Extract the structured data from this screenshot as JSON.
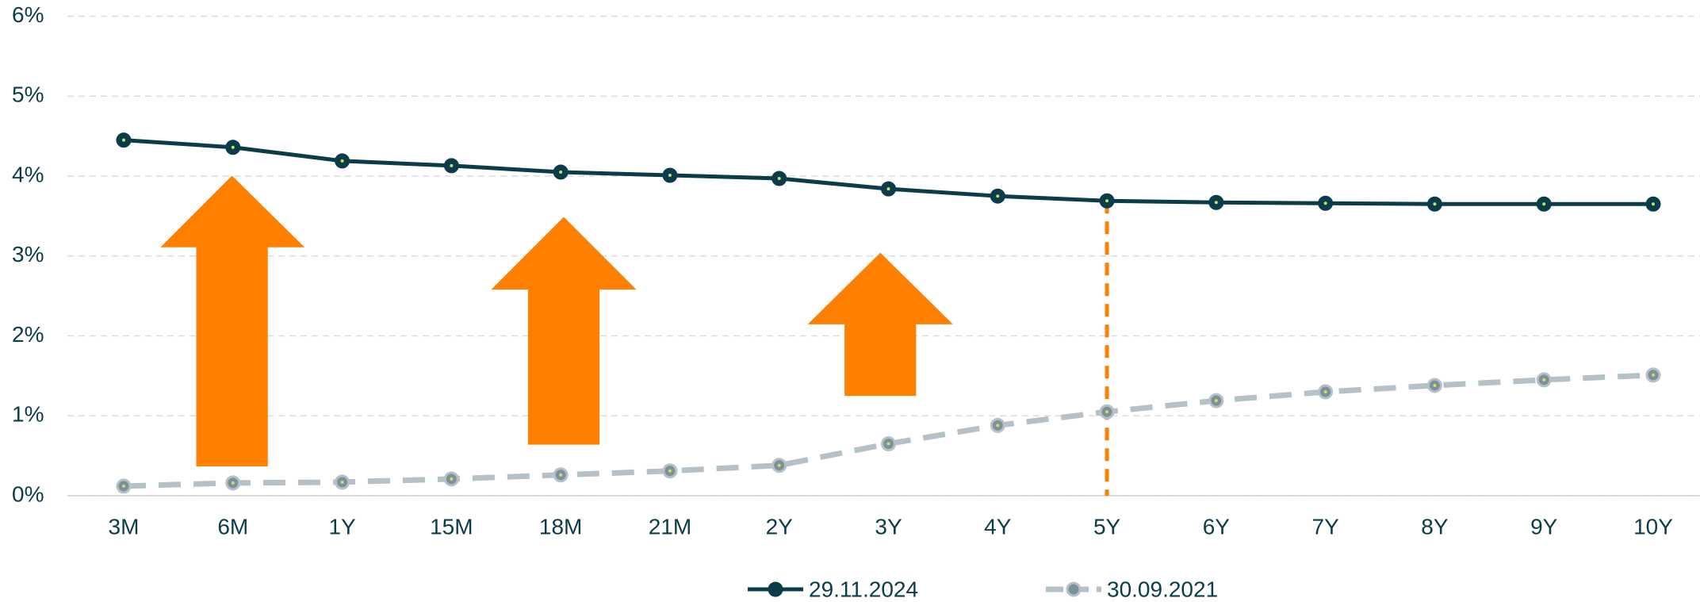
{
  "chart_data": {
    "type": "line",
    "categories": [
      "3M",
      "6M",
      "1Y",
      "15M",
      "18M",
      "21M",
      "2Y",
      "3Y",
      "4Y",
      "5Y",
      "6Y",
      "7Y",
      "8Y",
      "9Y",
      "10Y"
    ],
    "series": [
      {
        "name": "29.11.2024",
        "color": "#0b3c49",
        "values": [
          4.45,
          4.36,
          4.19,
          4.13,
          4.05,
          4.01,
          3.97,
          3.84,
          3.75,
          3.69,
          3.67,
          3.66,
          3.65,
          3.65,
          3.65
        ]
      },
      {
        "name": "30.09.2021",
        "color": "#b5c0c7",
        "values": [
          0.12,
          0.16,
          0.17,
          0.21,
          0.26,
          0.31,
          0.38,
          0.65,
          0.88,
          1.05,
          1.19,
          1.3,
          1.38,
          1.45,
          1.51
        ]
      }
    ],
    "ylim": [
      0,
      6
    ],
    "yticks": [
      {
        "value": 0,
        "label": "0%"
      },
      {
        "value": 1,
        "label": "1%"
      },
      {
        "value": 2,
        "label": "2%"
      },
      {
        "value": 3,
        "label": "3%"
      },
      {
        "value": 4,
        "label": "4%"
      },
      {
        "value": 5,
        "label": "5%"
      },
      {
        "value": 6,
        "label": "6%"
      }
    ],
    "grid": true
  }
}
